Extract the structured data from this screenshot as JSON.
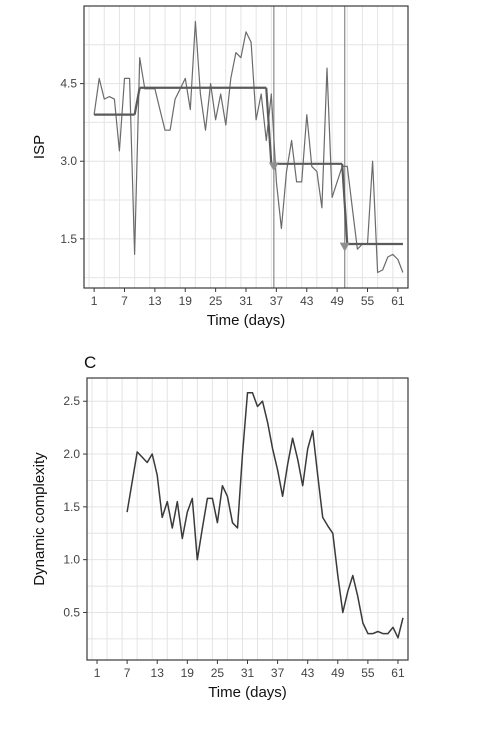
{
  "chart_data": [
    {
      "type": "line",
      "panel_label": "",
      "xlabel": "Time (days)",
      "ylabel": "ISP",
      "xlim": [
        -1,
        63
      ],
      "ylim": [
        0.55,
        6.0
      ],
      "x_ticks": [
        1,
        7,
        13,
        19,
        25,
        31,
        37,
        43,
        49,
        55,
        61
      ],
      "y_ticks": [
        1.5,
        3.0,
        4.5
      ],
      "y_tick_labels": [
        "1.5",
        "3.0",
        "4.5"
      ],
      "grid": true,
      "colors": {
        "line": "#6b6b6b",
        "segment": "#5a5a5a",
        "vline": "#8a8a8a",
        "marker": "#8f8f8f",
        "grid": "#e4e4e4",
        "frame": "#3a3a3a"
      },
      "series": [
        {
          "x": [
            1,
            2,
            3,
            4,
            5,
            6,
            7,
            8,
            9,
            10,
            11,
            12,
            13,
            14,
            15,
            16,
            17,
            18,
            19,
            20,
            21,
            22,
            23,
            24,
            25,
            26,
            27,
            28,
            29,
            30,
            31,
            32,
            33,
            34,
            35,
            36,
            37,
            38,
            39,
            40,
            41,
            42,
            43,
            44,
            45,
            46,
            47,
            48,
            49,
            50,
            51,
            52,
            53,
            54,
            55,
            56,
            57,
            58,
            59,
            60,
            61,
            62
          ],
          "values": [
            3.9,
            4.6,
            4.2,
            4.25,
            4.2,
            3.2,
            4.6,
            4.6,
            1.2,
            5.0,
            4.4,
            4.4,
            4.4,
            4.0,
            3.6,
            3.6,
            4.2,
            4.4,
            4.6,
            4.0,
            5.7,
            4.3,
            3.6,
            4.5,
            3.8,
            4.3,
            3.7,
            4.6,
            5.1,
            5.0,
            5.5,
            5.3,
            3.8,
            4.3,
            3.4,
            4.3,
            2.6,
            1.7,
            2.8,
            3.4,
            2.6,
            2.6,
            3.9,
            2.9,
            2.8,
            2.1,
            4.8,
            2.3,
            2.6,
            2.9,
            2.9,
            2.1,
            1.3,
            1.4,
            1.4,
            3.0,
            0.85,
            0.9,
            1.15,
            1.2,
            1.1,
            0.85
          ]
        }
      ],
      "segments": [
        {
          "x_start": 1,
          "x_end": 9,
          "y": 3.9
        },
        {
          "x_start": 10,
          "x_end": 35,
          "y": 4.42
        },
        {
          "x_start": 36,
          "x_end": 50,
          "y": 2.95
        },
        {
          "x_start": 51,
          "x_end": 62,
          "y": 1.4
        }
      ],
      "change_points": [
        36.5,
        50.5
      ],
      "markers": [
        {
          "x": 36.5,
          "y": 2.9
        },
        {
          "x": 50.5,
          "y": 1.35
        }
      ]
    },
    {
      "type": "line",
      "panel_label": "C",
      "xlabel": "Time (days)",
      "ylabel": "Dynamic complexity",
      "xlim": [
        -1,
        63
      ],
      "ylim": [
        0.05,
        2.72
      ],
      "x_ticks": [
        1,
        7,
        13,
        19,
        25,
        31,
        37,
        43,
        49,
        55,
        61
      ],
      "y_ticks": [
        0.5,
        1.0,
        1.5,
        2.0,
        2.5
      ],
      "y_tick_labels": [
        "0.5",
        "1.0",
        "1.5",
        "2.0",
        "2.5"
      ],
      "grid": true,
      "colors": {
        "line": "#3a3a3a",
        "grid": "#e4e4e4",
        "frame": "#3a3a3a"
      },
      "series": [
        {
          "x": [
            7,
            9,
            11,
            12,
            13,
            14,
            15,
            16,
            17,
            18,
            19,
            20,
            21,
            22,
            23,
            24,
            25,
            26,
            27,
            28,
            29,
            30,
            31,
            32,
            33,
            34,
            35,
            36,
            37,
            38,
            39,
            40,
            41,
            42,
            43,
            44,
            45,
            46,
            47,
            48,
            49,
            50,
            51,
            52,
            53,
            54,
            55,
            56,
            57,
            58,
            59,
            60,
            61,
            62
          ],
          "values": [
            1.45,
            2.02,
            1.92,
            2.0,
            1.8,
            1.4,
            1.55,
            1.3,
            1.55,
            1.2,
            1.45,
            1.58,
            1.0,
            1.3,
            1.58,
            1.58,
            1.35,
            1.7,
            1.6,
            1.35,
            1.3,
            2.0,
            2.58,
            2.58,
            2.45,
            2.5,
            2.3,
            2.05,
            1.85,
            1.6,
            1.9,
            2.15,
            1.95,
            1.7,
            2.05,
            2.22,
            1.8,
            1.4,
            1.32,
            1.25,
            0.85,
            0.5,
            0.7,
            0.85,
            0.65,
            0.4,
            0.3,
            0.3,
            0.32,
            0.3,
            0.3,
            0.36,
            0.26,
            0.45
          ]
        }
      ]
    }
  ]
}
